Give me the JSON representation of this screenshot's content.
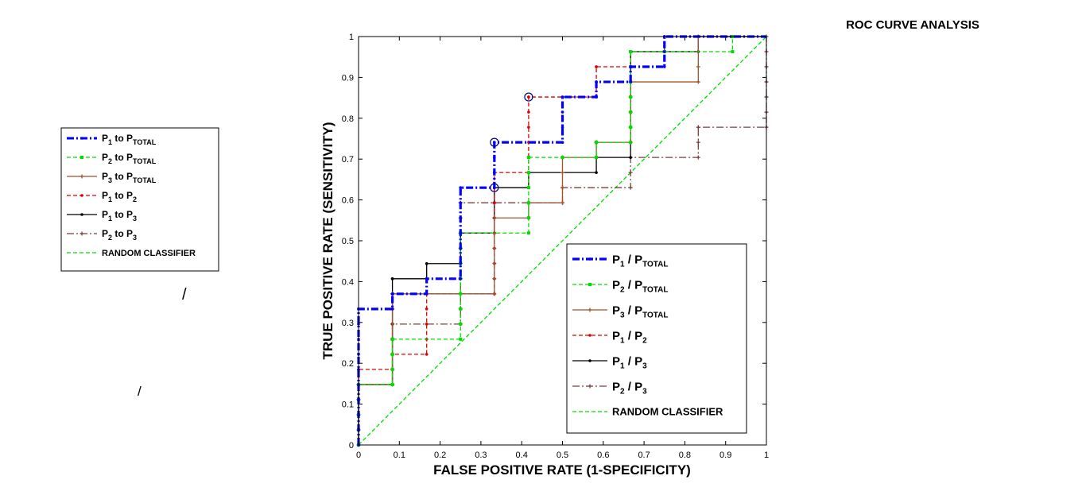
{
  "chart_data": {
    "type": "line",
    "title": "ROC CURVE ANALYSIS",
    "xlabel": "FALSE POSITIVE RATE (1-SPECIFICITY)",
    "ylabel": "TRUE POSITIVE RATE (SENSITIVITY)",
    "xlim": [
      0,
      1
    ],
    "ylim": [
      0,
      1
    ],
    "xticks": [
      "0",
      "0.1",
      "0.2",
      "0.3",
      "0.4",
      "0.5",
      "0.6",
      "0.7",
      "0.8",
      "0.9",
      "1"
    ],
    "yticks": [
      "0",
      "0.1",
      "0.2",
      "0.3",
      "0.4",
      "0.5",
      "0.6",
      "0.7",
      "0.8",
      "0.9",
      "1"
    ],
    "grid": false,
    "legend_placement": "lower-right",
    "series": [
      {
        "name": "P1 / PTOTAL",
        "label_main": "P",
        "label_sub1": "1",
        "label_mid": " / P",
        "label_sub2": "TOTAL",
        "color": "#0000ff",
        "style": "dashdot",
        "marker": "dot",
        "x": [
          0,
          0,
          0.083,
          0.083,
          0.167,
          0.167,
          0.25,
          0.25,
          0.333,
          0.333,
          0.5,
          0.5,
          0.583,
          0.583,
          0.667,
          0.667,
          0.75,
          0.75,
          1
        ],
        "y": [
          0,
          0.333,
          0.333,
          0.37,
          0.37,
          0.407,
          0.407,
          0.63,
          0.63,
          0.741,
          0.741,
          0.852,
          0.852,
          0.889,
          0.889,
          0.926,
          0.926,
          1,
          1
        ]
      },
      {
        "name": "P2 / PTOTAL",
        "label_main": "P",
        "label_sub1": "2",
        "label_mid": " / P",
        "label_sub2": "TOTAL",
        "color": "#00dd00",
        "style": "dashed",
        "marker": "square",
        "x": [
          0,
          0,
          0.083,
          0.083,
          0.25,
          0.25,
          0.417,
          0.417,
          0.5,
          0.5,
          0.583,
          0.583,
          0.667,
          0.667,
          0.75,
          0.75,
          0.917,
          0.917,
          1
        ],
        "y": [
          0,
          0.148,
          0.148,
          0.259,
          0.259,
          0.519,
          0.519,
          0.704,
          0.704,
          0.704,
          0.704,
          0.741,
          0.741,
          0.963,
          0.963,
          0.963,
          0.963,
          1,
          1
        ]
      },
      {
        "name": "P3 / PTOTAL",
        "label_main": "P",
        "label_sub1": "3",
        "label_mid": " / P",
        "label_sub2": "TOTAL",
        "color": "#a0522d",
        "style": "solid",
        "marker": "plus",
        "x": [
          0,
          0,
          0.083,
          0.083,
          0.333,
          0.333,
          0.417,
          0.417,
          0.5,
          0.5,
          0.583,
          0.583,
          0.667,
          0.667,
          0.833,
          0.833,
          1
        ],
        "y": [
          0,
          0.148,
          0.148,
          0.37,
          0.37,
          0.556,
          0.556,
          0.593,
          0.593,
          0.704,
          0.704,
          0.741,
          0.741,
          0.889,
          0.889,
          1,
          1
        ]
      },
      {
        "name": "P1 / P2",
        "label_main": "P",
        "label_sub1": "1",
        "label_mid": " / P",
        "label_sub2": "2",
        "color": "#dd0000",
        "style": "dashed",
        "marker": "dot",
        "x": [
          0,
          0,
          0.083,
          0.083,
          0.167,
          0.167,
          0.333,
          0.333,
          0.417,
          0.417,
          0.583,
          0.583,
          0.667,
          0.667,
          0.75,
          0.75,
          1
        ],
        "y": [
          0,
          0.185,
          0.185,
          0.222,
          0.222,
          0.37,
          0.37,
          0.667,
          0.667,
          0.852,
          0.852,
          0.926,
          0.926,
          0.963,
          0.963,
          1,
          1
        ]
      },
      {
        "name": "P1 / P3",
        "label_main": "P",
        "label_sub1": "1",
        "label_mid": " / P",
        "label_sub2": "3",
        "color": "#000000",
        "style": "solid",
        "marker": "dot",
        "x": [
          0,
          0,
          0.083,
          0.083,
          0.167,
          0.167,
          0.25,
          0.25,
          0.333,
          0.333,
          0.417,
          0.417,
          0.583,
          0.583,
          0.667,
          0.667,
          0.833,
          0.833,
          1
        ],
        "y": [
          0,
          0.148,
          0.148,
          0.407,
          0.407,
          0.444,
          0.444,
          0.519,
          0.519,
          0.63,
          0.63,
          0.667,
          0.667,
          0.704,
          0.704,
          0.963,
          0.963,
          1,
          1
        ]
      },
      {
        "name": "P2 / P3",
        "label_main": "P",
        "label_sub1": "2",
        "label_mid": " / P",
        "label_sub2": "3",
        "color": "#7a3f3f",
        "style": "dashdot",
        "marker": "plus",
        "x": [
          0,
          0,
          0.083,
          0.083,
          0.25,
          0.25,
          0.333,
          0.333,
          0.5,
          0.5,
          0.667,
          0.667,
          0.833,
          0.833,
          1,
          1
        ],
        "y": [
          0,
          0.148,
          0.148,
          0.296,
          0.296,
          0.593,
          0.593,
          0.593,
          0.593,
          0.63,
          0.63,
          0.704,
          0.704,
          0.778,
          0.778,
          1
        ]
      },
      {
        "name": "RANDOM CLASSIFIER",
        "label_main": "RANDOM CLASSIFIER",
        "label_sub1": "",
        "label_mid": "",
        "label_sub2": "",
        "color": "#00dd00",
        "style": "dashed",
        "marker": "none",
        "x": [
          0,
          1
        ],
        "y": [
          0,
          1
        ]
      }
    ],
    "highlight_points": [
      {
        "x": 0.333,
        "y": 0.741
      },
      {
        "x": 0.333,
        "y": 0.63
      },
      {
        "x": 0.417,
        "y": 0.852
      }
    ],
    "secondary_legend": {
      "entries": [
        {
          "main": "P",
          "sub1": "1",
          "mid": " to P",
          "sub2": "TOTAL",
          "color": "#0000ff",
          "style": "dashdot",
          "marker": "dot"
        },
        {
          "main": "P",
          "sub1": "2",
          "mid": " to P",
          "sub2": "TOTAL",
          "color": "#00dd00",
          "style": "dashed",
          "marker": "square"
        },
        {
          "main": "P",
          "sub1": "3",
          "mid": " to P",
          "sub2": "TOTAL",
          "color": "#a0522d",
          "style": "solid",
          "marker": "plus"
        },
        {
          "main": "P",
          "sub1": "1",
          "mid": " to P",
          "sub2": "2",
          "color": "#dd0000",
          "style": "dashed",
          "marker": "dot"
        },
        {
          "main": "P",
          "sub1": "1",
          "mid": " to P",
          "sub2": "3",
          "color": "#000000",
          "style": "solid",
          "marker": "dot"
        },
        {
          "main": "P",
          "sub1": "2",
          "mid": " to P",
          "sub2": "3",
          "color": "#7a3f3f",
          "style": "dashdot",
          "marker": "plus"
        },
        {
          "main": "RANDOM CLASSIFIER",
          "sub1": "",
          "mid": "",
          "sub2": "",
          "color": "#00dd00",
          "style": "dashed",
          "marker": "none"
        }
      ],
      "placement": "left"
    },
    "stray_marks": [
      "/",
      "/"
    ]
  }
}
